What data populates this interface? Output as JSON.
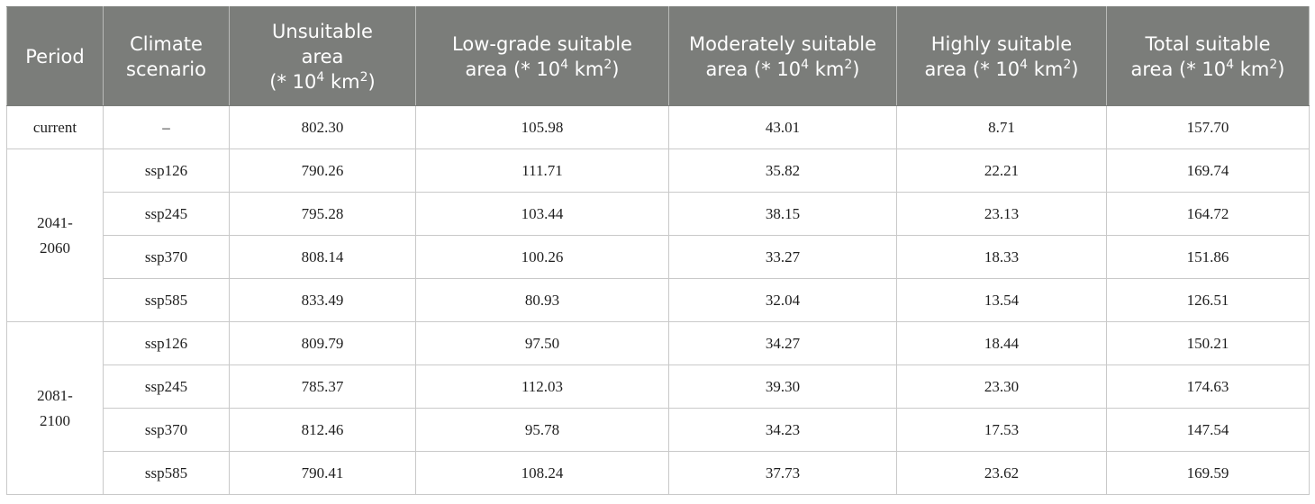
{
  "table": {
    "headers": {
      "period": [
        "Period"
      ],
      "scenario": [
        "Climate",
        "scenario"
      ],
      "unsuitable": {
        "lines": [
          "Unsuitable",
          "area"
        ],
        "unit_prefix": "(* 10",
        "exp": "4",
        "unit_mid": " km",
        "exp2": "2",
        "unit_suffix": ")"
      },
      "low": {
        "lines": [
          "Low-grade suitable",
          "area"
        ],
        "unit_prefix": "(* 10",
        "exp": "4",
        "unit_mid": " km",
        "exp2": "2",
        "unit_suffix": ")"
      },
      "moderate": {
        "lines": [
          "Moderately suitable",
          "area"
        ],
        "unit_prefix": "(* 10",
        "exp": "4",
        "unit_mid": " km",
        "exp2": "2",
        "unit_suffix": ")"
      },
      "high": {
        "lines": [
          "Highly suitable",
          "area"
        ],
        "unit_prefix": "(* 10",
        "exp": "4",
        "unit_mid": " km",
        "exp2": "2",
        "unit_suffix": ")"
      },
      "total": {
        "lines": [
          "Total suitable",
          "area"
        ],
        "unit_prefix": "(* 10",
        "exp": "4",
        "unit_mid": " km",
        "exp2": "2",
        "unit_suffix": ")"
      }
    },
    "groups": [
      {
        "period": [
          "current"
        ],
        "rows": [
          {
            "scenario": "–",
            "unsuitable": "802.30",
            "low": "105.98",
            "moderate": "43.01",
            "high": "8.71",
            "total": "157.70"
          }
        ]
      },
      {
        "period": [
          "2041-",
          "2060"
        ],
        "rows": [
          {
            "scenario": "ssp126",
            "unsuitable": "790.26",
            "low": "111.71",
            "moderate": "35.82",
            "high": "22.21",
            "total": "169.74"
          },
          {
            "scenario": "ssp245",
            "unsuitable": "795.28",
            "low": "103.44",
            "moderate": "38.15",
            "high": "23.13",
            "total": "164.72"
          },
          {
            "scenario": "ssp370",
            "unsuitable": "808.14",
            "low": "100.26",
            "moderate": "33.27",
            "high": "18.33",
            "total": "151.86"
          },
          {
            "scenario": "ssp585",
            "unsuitable": "833.49",
            "low": "80.93",
            "moderate": "32.04",
            "high": "13.54",
            "total": "126.51"
          }
        ]
      },
      {
        "period": [
          "2081-",
          "2100"
        ],
        "rows": [
          {
            "scenario": "ssp126",
            "unsuitable": "809.79",
            "low": "97.50",
            "moderate": "34.27",
            "high": "18.44",
            "total": "150.21"
          },
          {
            "scenario": "ssp245",
            "unsuitable": "785.37",
            "low": "112.03",
            "moderate": "39.30",
            "high": "23.30",
            "total": "174.63"
          },
          {
            "scenario": "ssp370",
            "unsuitable": "812.46",
            "low": "95.78",
            "moderate": "34.23",
            "high": "17.53",
            "total": "147.54"
          },
          {
            "scenario": "ssp585",
            "unsuitable": "790.41",
            "low": "108.24",
            "moderate": "37.73",
            "high": "23.62",
            "total": "169.59"
          }
        ]
      }
    ]
  }
}
